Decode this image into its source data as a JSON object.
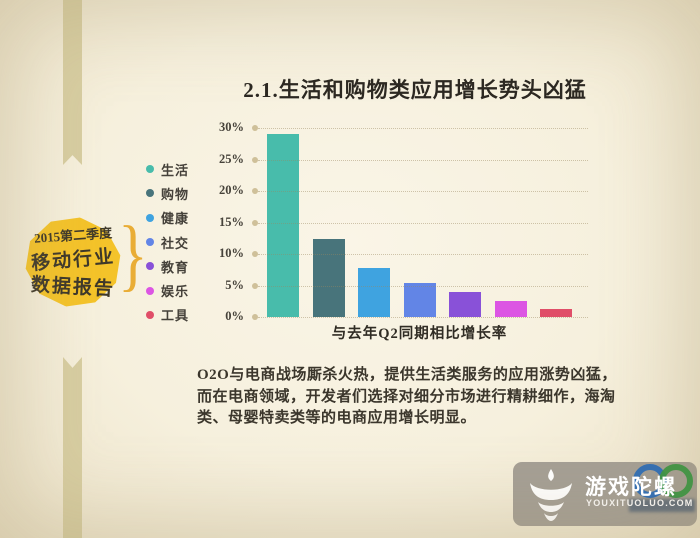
{
  "badge": {
    "lines": [
      "2015第二季度",
      "移动行业",
      "数据报告"
    ],
    "color": "#f4c32a",
    "brace_glyph": "}"
  },
  "chart_data": {
    "type": "bar",
    "title": "2.1.生活和购物类应用增长势头凶猛",
    "categories": [
      "生活",
      "购物",
      "健康",
      "社交",
      "教育",
      "娱乐",
      "工具"
    ],
    "values": [
      29,
      12.4,
      7.7,
      5.4,
      3.9,
      2.5,
      1.2
    ],
    "unit": "%",
    "colors": [
      "#48bcab",
      "#48747b",
      "#3fa3e0",
      "#6285e6",
      "#8951d8",
      "#dc55e3",
      "#e04e68"
    ],
    "xlabel": "与去年Q2同期相比增长率",
    "ylabel": "",
    "ylim": [
      0,
      30
    ],
    "yticks": [
      "30%",
      "25%",
      "20%",
      "15%",
      "10%",
      "5%",
      "0%"
    ],
    "grid": "dotted-horizontal",
    "legend_position": "left"
  },
  "paragraph": "O2O与电商战场厮杀火热，提供生活类服务的应用涨势凶猛，而在电商领域，开发者们选择对细分市场进行精耕细作，海淘类、母婴特卖类等的电商应用增长明显。",
  "footer_logo": {
    "brand": "游戏陀螺",
    "domain": "YOUXITUOLUO.COM"
  },
  "colors": {
    "background": "#f7f1e0",
    "ribbon": "#d7cda1",
    "tick_dot": "#cfc099",
    "logo_box": "#a59f95",
    "watermark_ring_blue": "#2e6cb3",
    "watermark_ring_green": "#3f9441"
  }
}
